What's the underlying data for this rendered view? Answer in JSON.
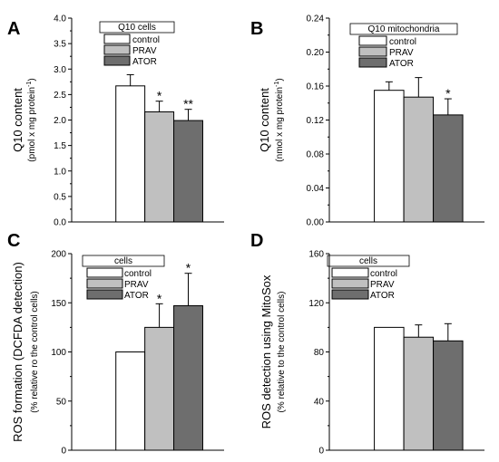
{
  "chart_data": [
    {
      "type": "bar",
      "panel_letter": "A",
      "legend_title": "Q10 cells",
      "legend_placement": "top",
      "categories": [
        "control",
        "PRAV",
        "ATOR"
      ],
      "values": [
        2.67,
        2.16,
        1.99
      ],
      "errors": [
        0.22,
        0.21,
        0.22
      ],
      "significance": [
        "",
        "*",
        "**"
      ],
      "ylabel_main": "Q10 content",
      "ylabel_sub": "(pmol x mg protein",
      "ylabel_sup": "-1",
      "ylabel_close": ")",
      "ylim": [
        0,
        4.0
      ],
      "yticks": [
        "0.0",
        "0.5",
        "1.0",
        "1.5",
        "2.0",
        "2.5",
        "3.0",
        "3.5",
        "4.0"
      ],
      "grid": false
    },
    {
      "type": "bar",
      "panel_letter": "B",
      "legend_title": "Q10 mitochondria",
      "legend_placement": "top",
      "categories": [
        "control",
        "PRAV",
        "ATOR"
      ],
      "values": [
        0.155,
        0.147,
        0.126
      ],
      "errors": [
        0.01,
        0.023,
        0.019
      ],
      "significance": [
        "",
        "",
        "*"
      ],
      "ylabel_main": "Q10 content",
      "ylabel_sub": "(nmol x mg protein",
      "ylabel_sup": "-1",
      "ylabel_close": ")",
      "ylim": [
        0,
        0.24
      ],
      "yticks": [
        "0.00",
        "0.04",
        "0.08",
        "0.12",
        "0.16",
        "0.20",
        "0.24"
      ],
      "grid": false
    },
    {
      "type": "bar",
      "panel_letter": "C",
      "legend_title": "cells",
      "legend_placement": "top-left",
      "categories": [
        "control",
        "PRAV",
        "ATOR"
      ],
      "values": [
        100,
        125,
        147
      ],
      "errors": [
        0,
        24,
        33
      ],
      "significance": [
        "",
        "*",
        "*"
      ],
      "ylabel_main": "ROS formation (DCFDA detection)",
      "ylabel_sub": "(% relative ro the control cells)",
      "ylabel_sup": "",
      "ylabel_close": "",
      "ylim": [
        0,
        200
      ],
      "yticks": [
        "0",
        "50",
        "100",
        "150",
        "200"
      ],
      "grid": false
    },
    {
      "type": "bar",
      "panel_letter": "D",
      "legend_title": "cells",
      "legend_placement": "top-left",
      "categories": [
        "control",
        "PRAV",
        "ATOR"
      ],
      "values": [
        100,
        92,
        89
      ],
      "errors": [
        0,
        10,
        14
      ],
      "significance": [
        "",
        "",
        ""
      ],
      "ylabel_main": "ROS detection using MitoSox",
      "ylabel_sub": "(% relative to the control cells)",
      "ylabel_sup": "",
      "ylabel_close": "",
      "ylim": [
        0,
        160
      ],
      "yticks": [
        "0",
        "40",
        "80",
        "120",
        "160"
      ],
      "grid": false
    }
  ],
  "colors": {
    "control": "#ffffff",
    "PRAV": "#c0c0c0",
    "ATOR": "#6e6e6e",
    "axis": "#000000"
  }
}
